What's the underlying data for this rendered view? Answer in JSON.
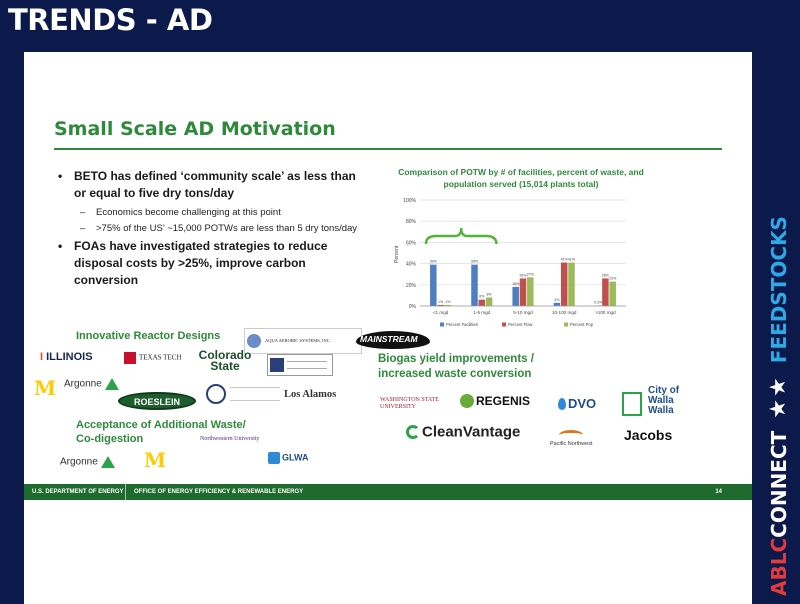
{
  "header": {
    "title": "TRENDS - AD"
  },
  "brand": {
    "ablc": "ABLC",
    "connect": "CONNECT",
    "stars": "★★",
    "feedstocks": "FEEDSTOCKS"
  },
  "slide": {
    "title": "Small Scale AD Motivation",
    "bullets": [
      {
        "text": "BETO has defined ‘community scale’ as less than or equal to five dry tons/day",
        "subs": [
          "Economics become challenging at this point",
          ">75% of the US’ ~15,000 POTWs are less than 5 dry tons/day"
        ]
      },
      {
        "text": "FOAs have investigated strategies to reduce disposal costs by >25%, improve carbon conversion",
        "subs": []
      }
    ],
    "sections": {
      "reactor": "Innovative Reactor Designs",
      "biogas": "Biogas yield improvements / increased waste conversion",
      "codigestion": "Acceptance of Additional Waste/ Co-digestion"
    },
    "logos": {
      "illinois": "ILLINOIS",
      "texas_tech": "TEXAS TECH",
      "colorado_state": "Colorado State",
      "aqua_aerobic": "AQUA AEROBIC SYSTEMS, INC.",
      "mainstream": "MAINSTREAM",
      "argonne": "Argonne",
      "roeslein": "ROESLEIN",
      "los_alamos": "Los Alamos",
      "northwestern": "Northwestern University",
      "glwa": "GLWA",
      "wsu": "WASHINGTON STATE UNIVERSITY",
      "regenis": "REGENIS",
      "dvo": "DVO",
      "walla_walla": "City of Walla Walla",
      "cleanvantage": "CleanVantage",
      "pnnl": "Pacific Northwest",
      "jacobs": "Jacobs"
    },
    "footer": {
      "doe": "U.S. DEPARTMENT OF ENERGY",
      "office": "OFFICE OF ENERGY EFFICIENCY & RENEWABLE ENERGY",
      "page": "14"
    }
  },
  "chart_data": {
    "type": "bar",
    "title": "Comparison of POTW by # of facilities, percent of waste, and population served (15,014 plants total)",
    "categories": [
      "<1 mgd",
      "1-5 mgd",
      "5-10 mgd",
      "10-100 mgd",
      ">100 mgd"
    ],
    "ylabel": "Percent",
    "ylim": [
      0,
      100
    ],
    "yticks": [
      "0%",
      "20%",
      "40%",
      "60%",
      "80%",
      "100%"
    ],
    "series": [
      {
        "name": "Percent Facilities",
        "color": "#4f7fc0",
        "values": [
          39,
          39,
          18,
          3,
          0.3
        ],
        "labels": [
          "39%",
          "39%",
          "18%",
          "3%",
          "0.3%"
        ]
      },
      {
        "name": "Percent Flow",
        "color": "#c0504d",
        "values": [
          1,
          6,
          26,
          41,
          26
        ],
        "labels": [
          "1%",
          "6%",
          "26%",
          "41%",
          "26%"
        ]
      },
      {
        "name": "Percent Pop",
        "color": "#9bbb59",
        "values": [
          1,
          8,
          27,
          41,
          23
        ],
        "labels": [
          "1%",
          "8%",
          "27%",
          "41%",
          "23%"
        ]
      }
    ]
  }
}
